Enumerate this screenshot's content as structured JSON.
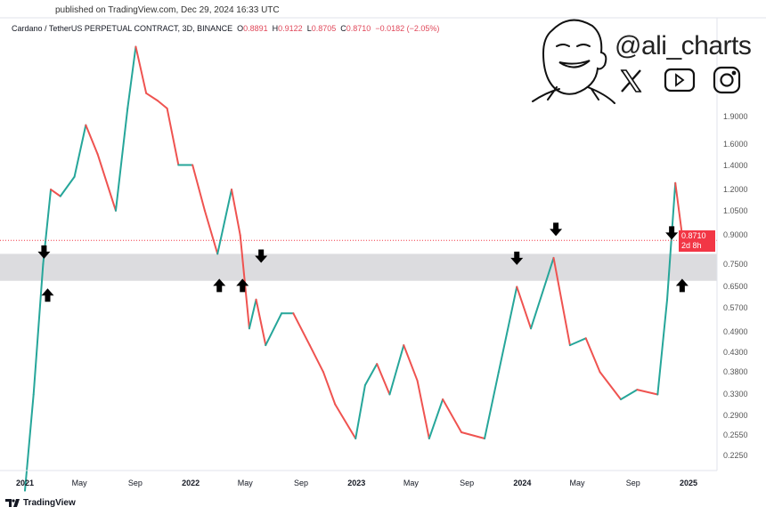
{
  "header": {
    "published": "published on TradingView.com, Dec 29, 2024 16:33 UTC",
    "symbol": "Cardano / TetherUS PERPETUAL CONTRACT, 3D, BINANCE",
    "o_label": "O",
    "o": "0.8891",
    "h_label": "H",
    "h": "0.9122",
    "l_label": "L",
    "l": "0.8705",
    "c_label": "C",
    "c": "0.8710",
    "change": "−0.0182 (−2.05%)"
  },
  "branding": {
    "handle": "@ali_charts",
    "icons": [
      "cartoon-face-icon",
      "x-icon",
      "youtube-icon",
      "instagram-icon"
    ]
  },
  "footer": {
    "logo": "TradingView"
  },
  "price_tag": {
    "price": "0.8710",
    "countdown": "2d 8h",
    "color": "#f23645"
  },
  "colors": {
    "up": "#26a69a",
    "down": "#ef5350",
    "zone": "#dcdcdf",
    "arrow": "#000000"
  },
  "chart_data": {
    "type": "line",
    "y_scale": "log",
    "ylim": [
      0.2,
      3.3
    ],
    "y_ticks": [
      "1.9000",
      "1.6000",
      "1.4000",
      "1.2000",
      "1.0500",
      "0.9000",
      "0.7500",
      "0.6500",
      "0.5700",
      "0.4900",
      "0.4300",
      "0.3800",
      "0.3300",
      "0.2900",
      "0.2550",
      "0.2250"
    ],
    "x_ticks": [
      {
        "label": "2021",
        "date": "2021-01-01",
        "year": true
      },
      {
        "label": "May",
        "date": "2021-05-01"
      },
      {
        "label": "Sep",
        "date": "2021-09-01"
      },
      {
        "label": "2022",
        "date": "2022-01-01",
        "year": true
      },
      {
        "label": "May",
        "date": "2022-05-01"
      },
      {
        "label": "Sep",
        "date": "2022-09-01"
      },
      {
        "label": "2023",
        "date": "2023-01-01",
        "year": true
      },
      {
        "label": "May",
        "date": "2023-05-01"
      },
      {
        "label": "Sep",
        "date": "2023-09-01"
      },
      {
        "label": "2024",
        "date": "2024-01-01",
        "year": true
      },
      {
        "label": "May",
        "date": "2024-05-01"
      },
      {
        "label": "Sep",
        "date": "2024-09-01"
      },
      {
        "label": "2025",
        "date": "2025-01-01",
        "year": true
      }
    ],
    "series": [
      [
        "2021-01-01",
        0.18
      ],
      [
        "2021-01-20",
        0.33
      ],
      [
        "2021-02-10",
        0.75
      ],
      [
        "2021-02-27",
        1.2
      ],
      [
        "2021-03-20",
        1.15
      ],
      [
        "2021-04-20",
        1.3
      ],
      [
        "2021-05-15",
        1.8
      ],
      [
        "2021-06-10",
        1.5
      ],
      [
        "2021-07-20",
        1.05
      ],
      [
        "2021-08-15",
        2.0
      ],
      [
        "2021-09-02",
        2.95
      ],
      [
        "2021-09-25",
        2.2
      ],
      [
        "2021-10-20",
        2.1
      ],
      [
        "2021-11-10",
        2.0
      ],
      [
        "2021-12-05",
        1.4
      ],
      [
        "2022-01-05",
        1.4
      ],
      [
        "2022-02-01",
        1.05
      ],
      [
        "2022-03-01",
        0.8
      ],
      [
        "2022-04-01",
        1.2
      ],
      [
        "2022-04-20",
        0.9
      ],
      [
        "2022-05-10",
        0.5
      ],
      [
        "2022-05-25",
        0.6
      ],
      [
        "2022-06-15",
        0.45
      ],
      [
        "2022-07-20",
        0.55
      ],
      [
        "2022-08-15",
        0.55
      ],
      [
        "2022-09-20",
        0.45
      ],
      [
        "2022-10-20",
        0.38
      ],
      [
        "2022-11-15",
        0.31
      ],
      [
        "2022-12-30",
        0.25
      ],
      [
        "2023-01-20",
        0.35
      ],
      [
        "2023-02-15",
        0.4
      ],
      [
        "2023-03-15",
        0.33
      ],
      [
        "2023-04-15",
        0.45
      ],
      [
        "2023-05-15",
        0.36
      ],
      [
        "2023-06-10",
        0.25
      ],
      [
        "2023-07-10",
        0.32
      ],
      [
        "2023-08-20",
        0.26
      ],
      [
        "2023-10-10",
        0.25
      ],
      [
        "2023-11-10",
        0.38
      ],
      [
        "2023-12-20",
        0.65
      ],
      [
        "2024-01-20",
        0.5
      ],
      [
        "2024-03-10",
        0.78
      ],
      [
        "2024-04-15",
        0.45
      ],
      [
        "2024-05-20",
        0.47
      ],
      [
        "2024-06-20",
        0.38
      ],
      [
        "2024-08-05",
        0.32
      ],
      [
        "2024-09-10",
        0.34
      ],
      [
        "2024-10-25",
        0.33
      ],
      [
        "2024-11-15",
        0.6
      ],
      [
        "2024-12-03",
        1.25
      ],
      [
        "2024-12-18",
        0.9
      ],
      [
        "2024-12-29",
        0.871
      ]
    ],
    "support_resistance_zone": [
      0.675,
      0.8
    ],
    "current_price": 0.871,
    "arrows": [
      {
        "dir": "down",
        "date": "2021-02-12",
        "price": 0.78
      },
      {
        "dir": "up",
        "date": "2021-02-20",
        "price": 0.64
      },
      {
        "dir": "up",
        "date": "2022-03-05",
        "price": 0.68
      },
      {
        "dir": "up",
        "date": "2022-04-25",
        "price": 0.68
      },
      {
        "dir": "down",
        "date": "2022-06-05",
        "price": 0.76
      },
      {
        "dir": "down",
        "date": "2023-12-20",
        "price": 0.75
      },
      {
        "dir": "down",
        "date": "2024-03-15",
        "price": 0.9
      },
      {
        "dir": "down",
        "date": "2024-11-25",
        "price": 0.88
      },
      {
        "dir": "up",
        "date": "2024-12-18",
        "price": 0.68
      }
    ]
  }
}
